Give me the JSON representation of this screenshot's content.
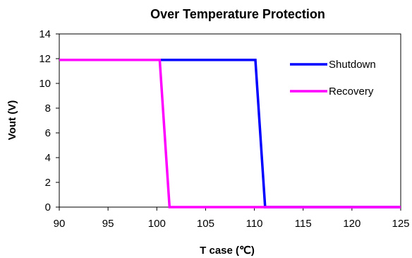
{
  "chart_data": {
    "type": "line",
    "title": "Over Temperature Protection",
    "xlabel": "T case (℃)",
    "ylabel": "Vout (V)",
    "xlim": [
      90,
      125
    ],
    "ylim": [
      0,
      14
    ],
    "xticks": [
      90,
      95,
      100,
      105,
      110,
      115,
      120,
      125
    ],
    "yticks": [
      0,
      2,
      4,
      6,
      8,
      10,
      12,
      14
    ],
    "grid": false,
    "legend_position": "right",
    "series": [
      {
        "name": "Shutdown",
        "color": "#0000FF",
        "x": [
          90,
          110.1,
          111.1,
          125
        ],
        "y": [
          11.9,
          11.9,
          0,
          0
        ]
      },
      {
        "name": "Recovery",
        "color": "#FF00FF",
        "x": [
          90,
          100.3,
          101.3,
          125
        ],
        "y": [
          11.9,
          11.9,
          0,
          0
        ]
      }
    ]
  }
}
